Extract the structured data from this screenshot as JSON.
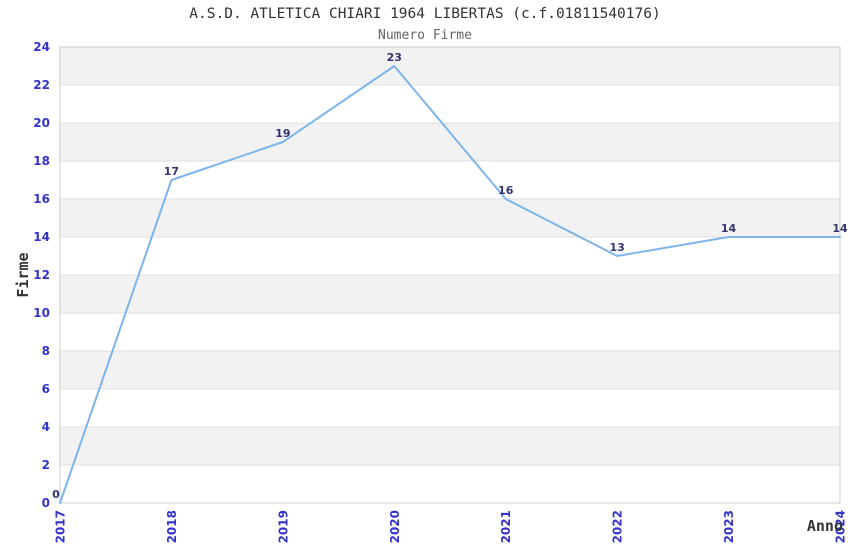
{
  "header": {
    "title": "A.S.D. ATLETICA CHIARI 1964 LIBERTAS (c.f.01811540176)",
    "subtitle": "Numero Firme"
  },
  "chart_data": {
    "type": "line",
    "title": "A.S.D. ATLETICA CHIARI 1964 LIBERTAS (c.f.01811540176)",
    "subtitle": "Numero Firme",
    "categories": [
      "2017",
      "2018",
      "2019",
      "2020",
      "2021",
      "2022",
      "2023",
      "2024"
    ],
    "values": [
      0,
      17,
      19,
      23,
      16,
      13,
      14,
      14
    ],
    "xlabel": "Anno",
    "ylabel": "Firme",
    "ylim": [
      0,
      24
    ],
    "ytick_interval": 2,
    "yticks": [
      0,
      2,
      4,
      6,
      8,
      10,
      12,
      14,
      16,
      18,
      20,
      22,
      24
    ],
    "grid": true,
    "legend_position": "none",
    "x_label_rotation": -90,
    "colors": {
      "line": "#7cb5ec",
      "tick_label": "#3333cc",
      "data_label": "#333370",
      "band_fill": "#f2f2f2",
      "grid_line": "#e0e0e0",
      "plot_border": "#cccccc",
      "title": "#333333",
      "subtitle": "#666666",
      "axis_title": "#333333",
      "background": "#ffffff"
    }
  }
}
